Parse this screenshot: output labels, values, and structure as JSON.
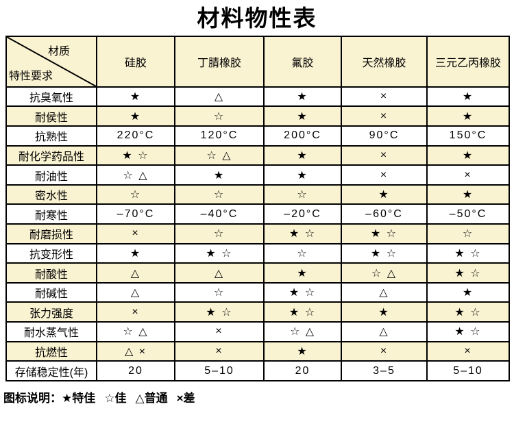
{
  "title": "材料物性表",
  "table": {
    "corner": {
      "top_right": "材质",
      "bottom_left": "特性要求"
    },
    "columns": [
      "硅胶",
      "丁腈橡胶",
      "氟胶",
      "天然橡胶",
      "三元乙丙橡胶"
    ],
    "rows": [
      {
        "property": "抗臭氧性",
        "values": [
          "★",
          "△",
          "★",
          "×",
          "★"
        ]
      },
      {
        "property": "耐侯性",
        "values": [
          "★",
          "☆",
          "★",
          "×",
          "★"
        ]
      },
      {
        "property": "抗熟性",
        "values": [
          "220°C",
          "120°C",
          "200°C",
          "90°C",
          "150°C"
        ]
      },
      {
        "property": "耐化学药品性",
        "values": [
          "★ ☆",
          "☆ △",
          "★",
          "×",
          "★"
        ]
      },
      {
        "property": "耐油性",
        "values": [
          "☆ △",
          "★",
          "★",
          "×",
          "×"
        ]
      },
      {
        "property": "密水性",
        "values": [
          "☆",
          "☆",
          "☆",
          "★",
          "★"
        ]
      },
      {
        "property": "耐寒性",
        "values": [
          "–70°C",
          "–40°C",
          "–20°C",
          "–60°C",
          "–50°C"
        ]
      },
      {
        "property": "耐磨损性",
        "values": [
          "×",
          "☆",
          "★ ☆",
          "★ ☆",
          "☆"
        ]
      },
      {
        "property": "抗变形性",
        "values": [
          "★",
          "★ ☆",
          "☆",
          "★ ☆",
          "★ ☆"
        ]
      },
      {
        "property": "耐酸性",
        "values": [
          "△",
          "△",
          "★",
          "☆ △",
          "★ ☆"
        ]
      },
      {
        "property": "耐碱性",
        "values": [
          "△",
          "☆",
          "★ ☆",
          "△",
          "★"
        ]
      },
      {
        "property": "张力强度",
        "values": [
          "×",
          "★ ☆",
          "★ ☆",
          "★",
          "★ ☆"
        ]
      },
      {
        "property": "耐水蒸气性",
        "values": [
          "☆ △",
          "×",
          "☆ △",
          "△",
          "★ ☆"
        ]
      },
      {
        "property": "抗燃性",
        "values": [
          "△ ×",
          "×",
          "★",
          "×",
          "×"
        ]
      },
      {
        "property": "存储稳定性(年)",
        "values": [
          "20",
          "5–10",
          "20",
          "3–5",
          "5–10"
        ]
      }
    ]
  },
  "legend": {
    "label": "图标说明：",
    "items": [
      {
        "symbol": "★",
        "meaning": "特佳"
      },
      {
        "symbol": "☆",
        "meaning": "佳"
      },
      {
        "symbol": "△",
        "meaning": "普通"
      },
      {
        "symbol": "×",
        "meaning": "差"
      }
    ]
  },
  "colors": {
    "row_stripe": "#FAF3D2",
    "table_border": "#000000",
    "background": "#FFFFFF",
    "text": "#000000"
  }
}
